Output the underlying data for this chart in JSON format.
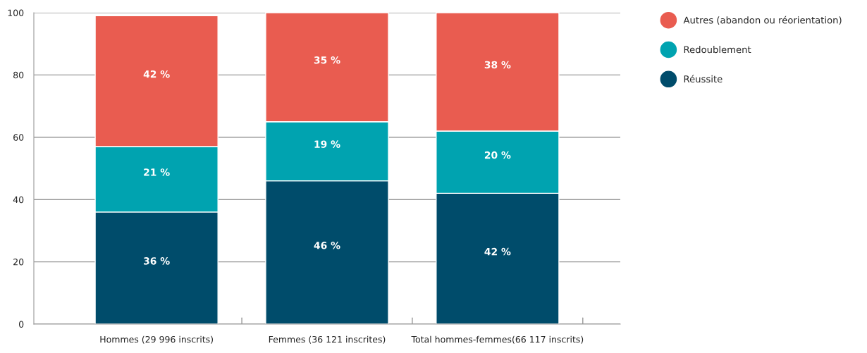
{
  "chart_data": {
    "type": "bar",
    "stacked": true,
    "categories": [
      "Hommes (29 996 inscrits)",
      "Femmes (36 121 inscrites)",
      "Total hommes-femmes(66 117 inscrits)"
    ],
    "series": [
      {
        "name": "Réussite",
        "color": "#004c6b",
        "values": [
          36,
          46,
          42
        ],
        "value_labels": [
          "36 %",
          "46 %",
          "42 %"
        ]
      },
      {
        "name": "Redoublement",
        "color": "#00a3b0",
        "values": [
          21,
          19,
          20
        ],
        "value_labels": [
          "21 %",
          "19 %",
          "20 %"
        ]
      },
      {
        "name": "Autres (abandon ou réorientation)",
        "color": "#e95c50",
        "values": [
          42,
          35,
          38
        ],
        "value_labels": [
          "42 %",
          "35 %",
          "38 %"
        ]
      }
    ],
    "ylim": [
      0,
      100
    ],
    "yticks": [
      0,
      20,
      40,
      60,
      80,
      100
    ],
    "grid": "y",
    "legend": "top right",
    "marker": "circle"
  }
}
